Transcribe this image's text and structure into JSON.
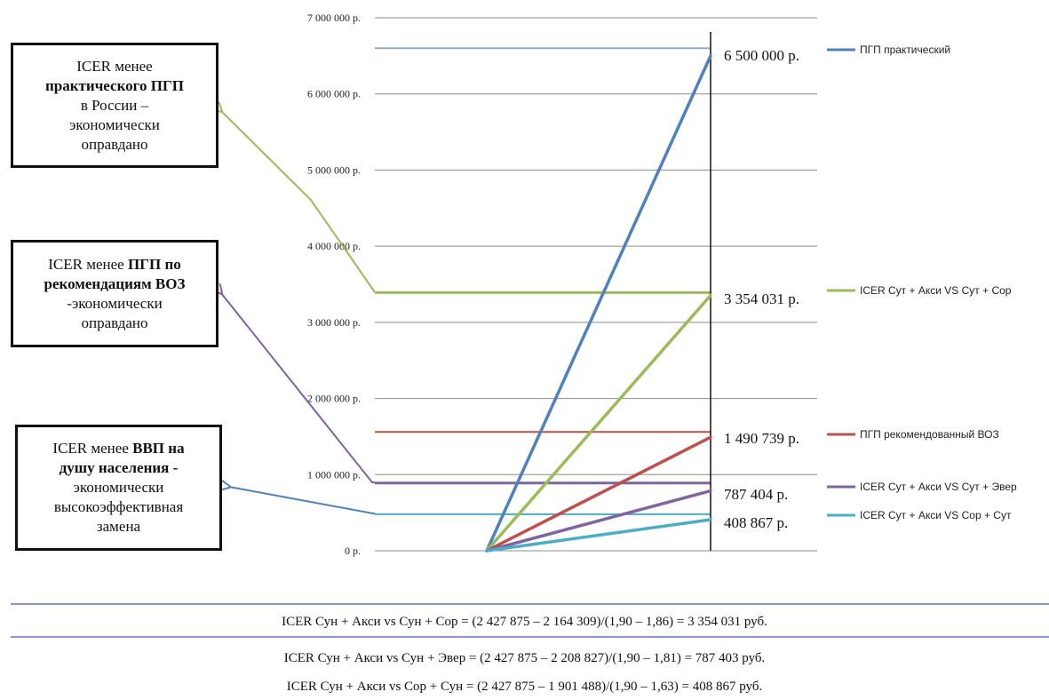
{
  "chart_data": {
    "type": "line",
    "ylim": [
      0,
      7000000
    ],
    "yticks": [
      "0 р.",
      "1 000 000 р.",
      "2 000 000 р.",
      "3 000 000 р.",
      "4 000 000 р.",
      "5 000 000 р.",
      "6 000 000 р.",
      "7 000 000 р."
    ],
    "ytick_values": [
      0,
      1000000,
      2000000,
      3000000,
      4000000,
      5000000,
      6000000,
      7000000
    ],
    "grid": true,
    "legend_placement": "right",
    "thresholds": [
      {
        "name": "ПГП практический",
        "value": 6600000,
        "color": "#9aa8db"
      },
      {
        "name": "ICER Сут + Акси VS Сут + Сор",
        "value": 3390000,
        "color": "#9bbb59"
      },
      {
        "name": "ПГП рекомендованный ВОЗ",
        "value": 1560000,
        "color": "#c0504d"
      },
      {
        "name": "ICER Сут + Акси VS Сут + Эвер",
        "value": 890000,
        "color": "#8064a2"
      },
      {
        "name": "ICER Сут + Акси VS Сор + Сут",
        "value": 480000,
        "color": "#4bacc6"
      }
    ],
    "series": [
      {
        "name": "ПГП практический",
        "color": "#4f81bd",
        "values": [
          0,
          6500000
        ],
        "label": "6 500 000 р."
      },
      {
        "name": "ICER Сут + Акси VS Сут + Сор",
        "color": "#9bbb59",
        "values": [
          0,
          3354031
        ],
        "label": "3 354 031 р."
      },
      {
        "name": "ПГП рекомендованный ВОЗ",
        "color": "#c0504d",
        "values": [
          0,
          1490739
        ],
        "label": "1 490 739 р."
      },
      {
        "name": "ICER Сут + Акси VS Сут + Эвер",
        "color": "#8064a2",
        "values": [
          0,
          787404
        ],
        "label": "787 404 р."
      },
      {
        "name": "ICER Сут + Акси VS Сор + Сут",
        "color": "#4bacc6",
        "values": [
          0,
          408867
        ],
        "label": "408 867 р."
      }
    ]
  },
  "callouts": [
    {
      "color": "#9bbb59",
      "lines": [
        {
          "text": "ICER менее",
          "bold": false
        },
        {
          "text": "практического ПГП",
          "bold": true
        },
        {
          "text": "в России –",
          "bold": false
        },
        {
          "text": "экономически",
          "bold": false
        },
        {
          "text": "оправдано",
          "bold": false
        }
      ]
    },
    {
      "color": "#8064a2",
      "lines": [
        {
          "text": "ICER менее ",
          "bold": false,
          "inline_bold": "ПГП по"
        },
        {
          "text": "рекомендациям ВОЗ",
          "bold": true
        },
        {
          "text": "-экономически",
          "bold": false
        },
        {
          "text": "оправдано",
          "bold": false
        }
      ]
    },
    {
      "color": "#4f81bd",
      "lines": [
        {
          "text": "ICER менее ",
          "bold": false,
          "inline_bold": "ВВП на"
        },
        {
          "text": "душу населения -",
          "bold": true
        },
        {
          "text": "экономически",
          "bold": false
        },
        {
          "text": "высокоэффективная",
          "bold": false
        },
        {
          "text": "замена",
          "bold": false
        }
      ]
    }
  ],
  "formulas": [
    "ICER Сун + Акси vs Сун + Сор = (2 427 875 – 2 164 309)/(1,90 – 1,86) = 3 354 031 руб.",
    "ICER Сун + Акси vs Сун + Эвер = (2 427 875 – 2 208 827)/(1,90 – 1,81) = 787 403 руб.",
    "ICER Сун + Акси vs Сор + Сун = (2 427 875 – 1 901 488)/(1,90 – 1,63) = 408 867 руб."
  ]
}
